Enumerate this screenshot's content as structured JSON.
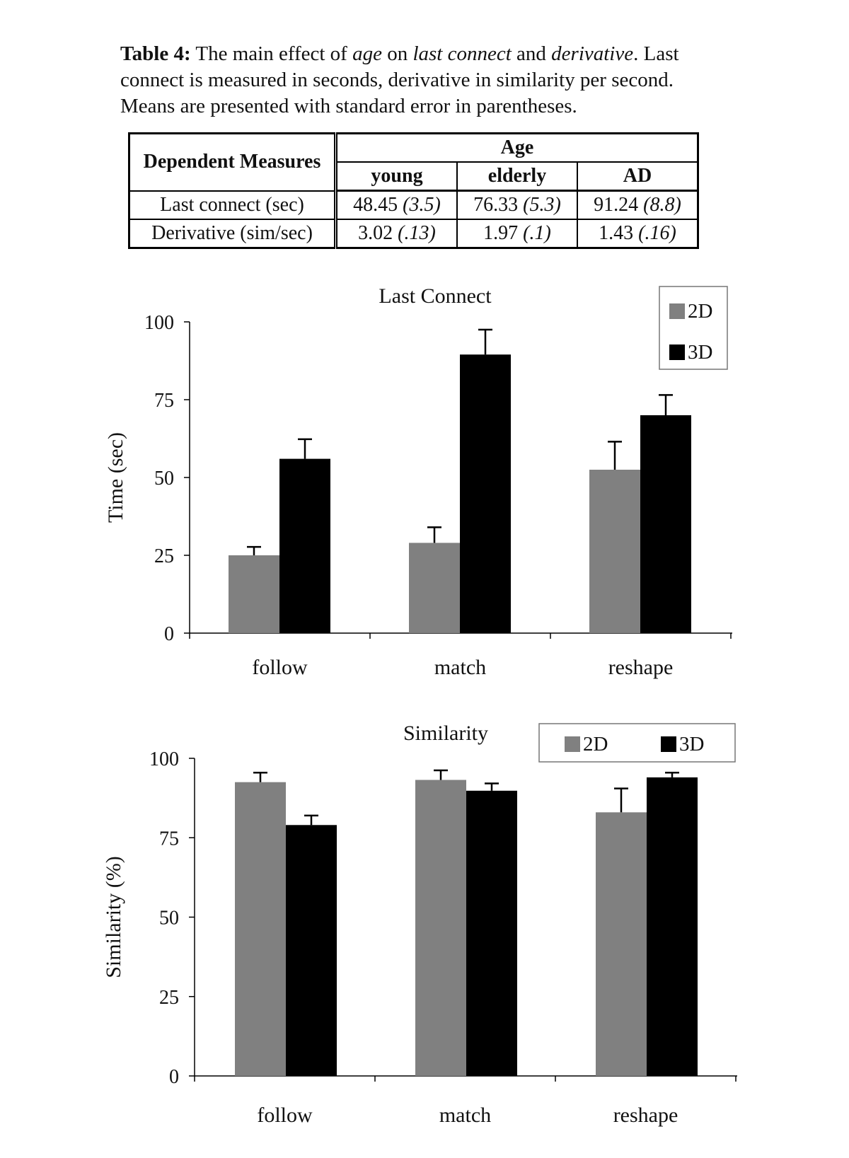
{
  "caption": {
    "label": "Table 4:",
    "t1": " The main effect of ",
    "i1": "age",
    "t2": " on ",
    "i2": "last connect",
    "t3": " and ",
    "i3": "derivative",
    "t4": ". Last connect is measured in seconds, derivative in similarity per second.  Means are presented with standard error in parentheses."
  },
  "table": {
    "header_measures": "Dependent Measures",
    "header_group": "Age",
    "columns": [
      "young",
      "elderly",
      "AD"
    ],
    "rows": [
      {
        "label": "Last connect (sec)",
        "means": [
          "48.45",
          "76.33",
          "91.24"
        ],
        "se": [
          "(3.5)",
          "(5.3)",
          "(8.8)"
        ]
      },
      {
        "label": "Derivative (sim/sec)",
        "means": [
          "3.02",
          "1.97",
          "1.43"
        ],
        "se": [
          "(.13)",
          "(.1)",
          "(.16)"
        ]
      }
    ]
  },
  "chart_data": [
    {
      "type": "bar",
      "title": "Last Connect",
      "ylabel": "Time (sec)",
      "xlabel": "",
      "categories": [
        "follow",
        "match",
        "reshape"
      ],
      "ylim": [
        0,
        100
      ],
      "yticks": [
        0,
        25,
        50,
        75,
        100
      ],
      "legend_position": "top-right",
      "legend_layout": "vertical",
      "series": [
        {
          "name": "2D",
          "color": "#808080",
          "values": [
            25,
            29,
            52.5
          ],
          "error": [
            2.7,
            5,
            9
          ]
        },
        {
          "name": "3D",
          "color": "#000000",
          "values": [
            56,
            89.5,
            70
          ],
          "error": [
            6.3,
            8,
            6.5
          ]
        }
      ]
    },
    {
      "type": "bar",
      "title": "Similarity",
      "ylabel": "Similarity (%)",
      "xlabel": "",
      "categories": [
        "follow",
        "match",
        "reshape"
      ],
      "ylim": [
        0,
        100
      ],
      "yticks": [
        0,
        25,
        50,
        75,
        100
      ],
      "legend_position": "top-right",
      "legend_layout": "horizontal",
      "series": [
        {
          "name": "2D",
          "color": "#808080",
          "values": [
            92.5,
            93.2,
            83
          ],
          "error": [
            3,
            3,
            7.5
          ]
        },
        {
          "name": "3D",
          "color": "#000000",
          "values": [
            79,
            89.8,
            94
          ],
          "error": [
            3,
            2.3,
            1.5
          ]
        }
      ]
    }
  ]
}
